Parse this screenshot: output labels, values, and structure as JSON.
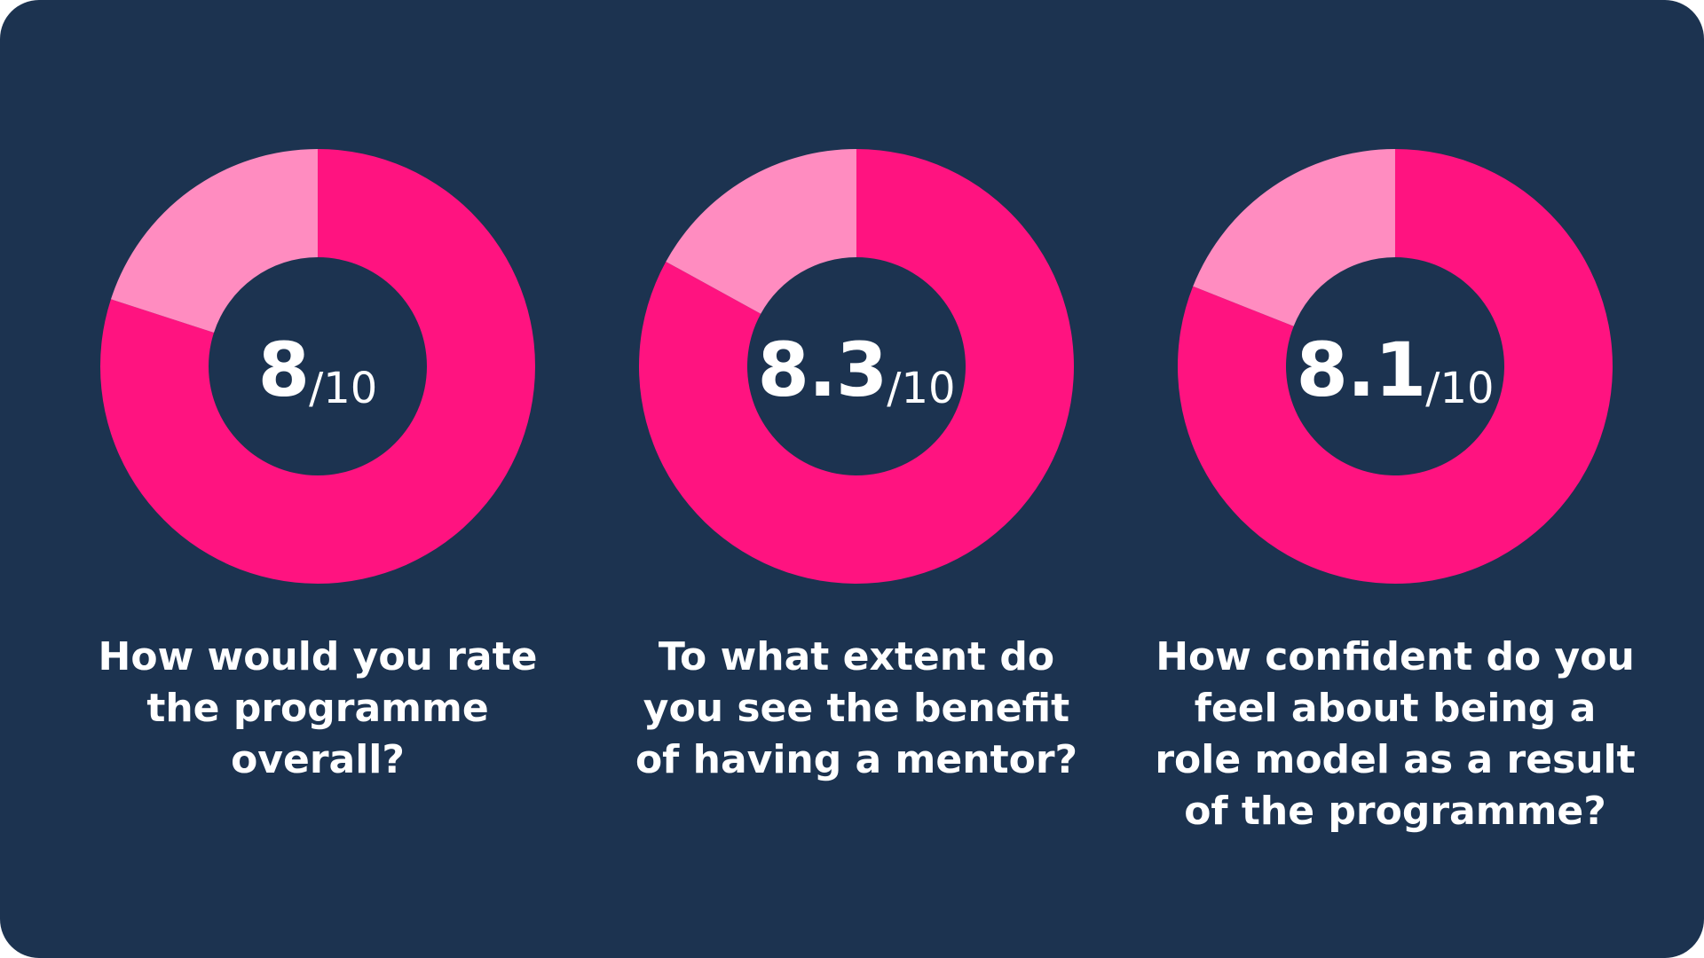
{
  "colors": {
    "background": "#1c3350",
    "score_fill": "#ff1380",
    "remainder_fill": "#ff8cc0",
    "text": "#ffffff"
  },
  "chart_data": [
    {
      "type": "pie",
      "value": 8,
      "max": 10,
      "score_text": "8",
      "suffix_text": "/10",
      "question_lines": [
        "How would you rate",
        "the programme",
        "overall?"
      ]
    },
    {
      "type": "pie",
      "value": 8.3,
      "max": 10,
      "score_text": "8.3",
      "suffix_text": "/10",
      "question_lines": [
        "To what extent do",
        "you see the benefit",
        "of having a mentor?"
      ]
    },
    {
      "type": "pie",
      "value": 8.1,
      "max": 10,
      "score_text": "8.1",
      "suffix_text": "/10",
      "question_lines": [
        "How confident do you",
        "feel about being a",
        "role model as a result",
        "of the programme?"
      ]
    }
  ]
}
